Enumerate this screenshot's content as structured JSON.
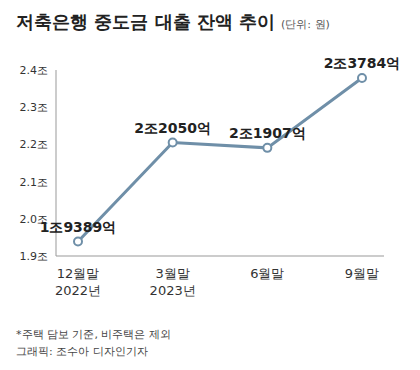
{
  "chart_data": {
    "type": "line",
    "title": "저축은행 중도금 대출 잔액 추이",
    "subtitle": "(단위: 원)",
    "categories": [
      "12월말\n2022년",
      "3월말\n2023년",
      "6월말",
      "9월말"
    ],
    "values": [
      1.9389,
      2.205,
      2.1907,
      2.3784
    ],
    "value_labels": [
      "1조9389억",
      "2조2050억",
      "2조1907억",
      "2조3784억"
    ],
    "color": "#6f8fa8",
    "marker": "circle",
    "ylim": [
      1.9,
      2.4
    ],
    "yticks": [
      {
        "value": 1.9,
        "label": "1.9조"
      },
      {
        "value": 2.0,
        "label": "2.0조"
      },
      {
        "value": 2.1,
        "label": "2.1조"
      },
      {
        "value": 2.2,
        "label": "2.2조"
      },
      {
        "value": 2.3,
        "label": "2.3조"
      },
      {
        "value": 2.4,
        "label": "2.4조"
      }
    ],
    "grid": false,
    "data_labels": true,
    "annotations": [
      "*주택 담보 기준, 비주택은 제외",
      "그래픽: 조수아 디자인기자"
    ]
  }
}
